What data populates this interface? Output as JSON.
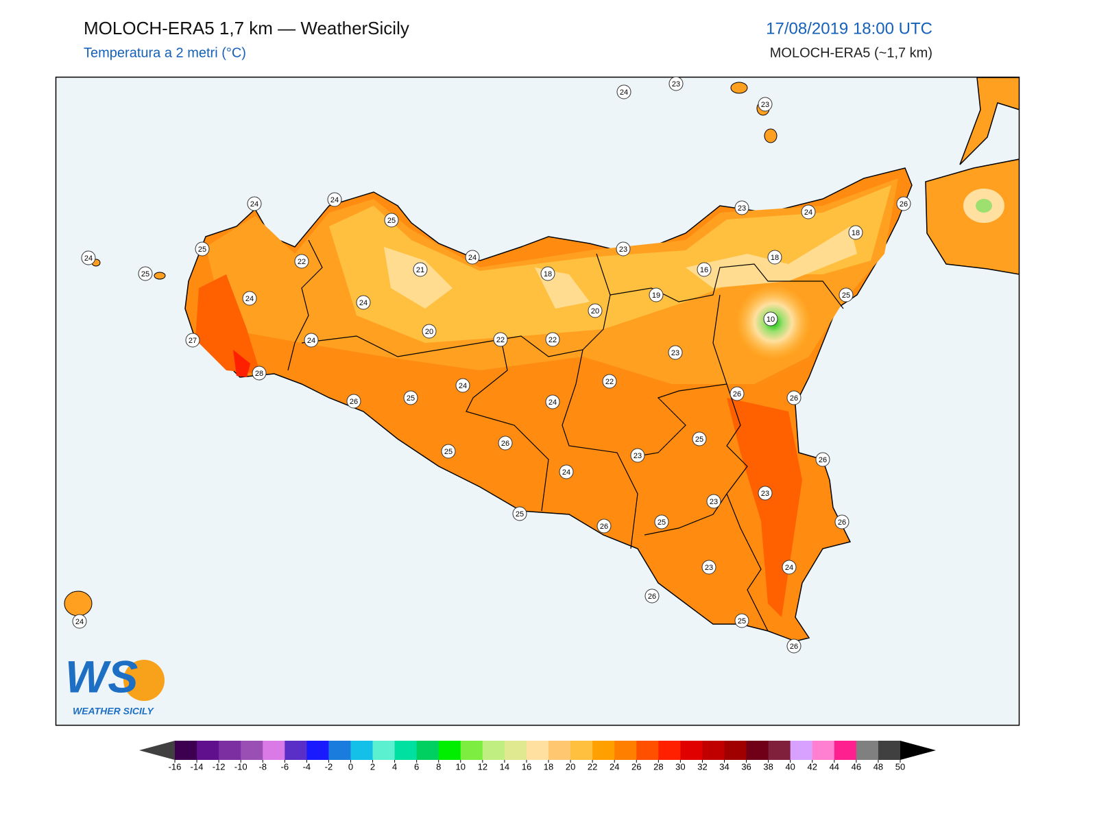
{
  "header": {
    "title": "MOLOCH-ERA5 1,7 km — WeatherSicily",
    "subtitle": "Temperatura a 2 metri (°C)",
    "datetime": "17/08/2019 18:00 UTC",
    "model": "MOLOCH-ERA5 (~1,7 km)"
  },
  "stations": [
    24,
    23,
    23,
    24,
    24,
    25,
    23,
    24,
    26,
    25,
    24,
    22,
    25,
    21,
    24,
    18,
    23,
    16,
    18,
    18,
    24,
    24,
    19,
    20,
    25,
    10,
    27,
    24,
    20,
    22,
    22,
    23,
    28,
    22,
    24,
    26,
    25,
    24,
    26,
    26,
    25,
    26,
    25,
    23,
    26,
    24,
    23,
    23,
    25,
    25,
    26,
    26,
    23,
    24,
    26,
    25,
    26,
    24
  ],
  "logo": {
    "mark": "WS",
    "name": "WEATHER SICILY"
  },
  "legend": {
    "ticks": [
      -16,
      -14,
      -12,
      -10,
      -8,
      -6,
      -4,
      -2,
      0,
      2,
      4,
      6,
      8,
      10,
      12,
      14,
      16,
      18,
      20,
      22,
      24,
      26,
      28,
      30,
      32,
      34,
      36,
      38,
      40,
      42,
      44,
      46,
      48,
      50
    ],
    "colors": [
      "#3d0050",
      "#60108c",
      "#7b2fa0",
      "#9a4fb5",
      "#d97ae6",
      "#5a2fc8",
      "#1a1aff",
      "#1a7ddd",
      "#15c0e8",
      "#5af0d0",
      "#00e0a0",
      "#00d060",
      "#00ee00",
      "#7dee40",
      "#c0ee80",
      "#e0e890",
      "#ffe0a0",
      "#ffc870",
      "#ffc040",
      "#ffa000",
      "#ff8000",
      "#ff5000",
      "#ff2000",
      "#e00000",
      "#c00000",
      "#a00000",
      "#700018",
      "#80203c",
      "#d8a0ff",
      "#ff80d0",
      "#ff2090",
      "#808080",
      "#404040"
    ],
    "under_color": "#404040",
    "over_color": "#000000"
  }
}
